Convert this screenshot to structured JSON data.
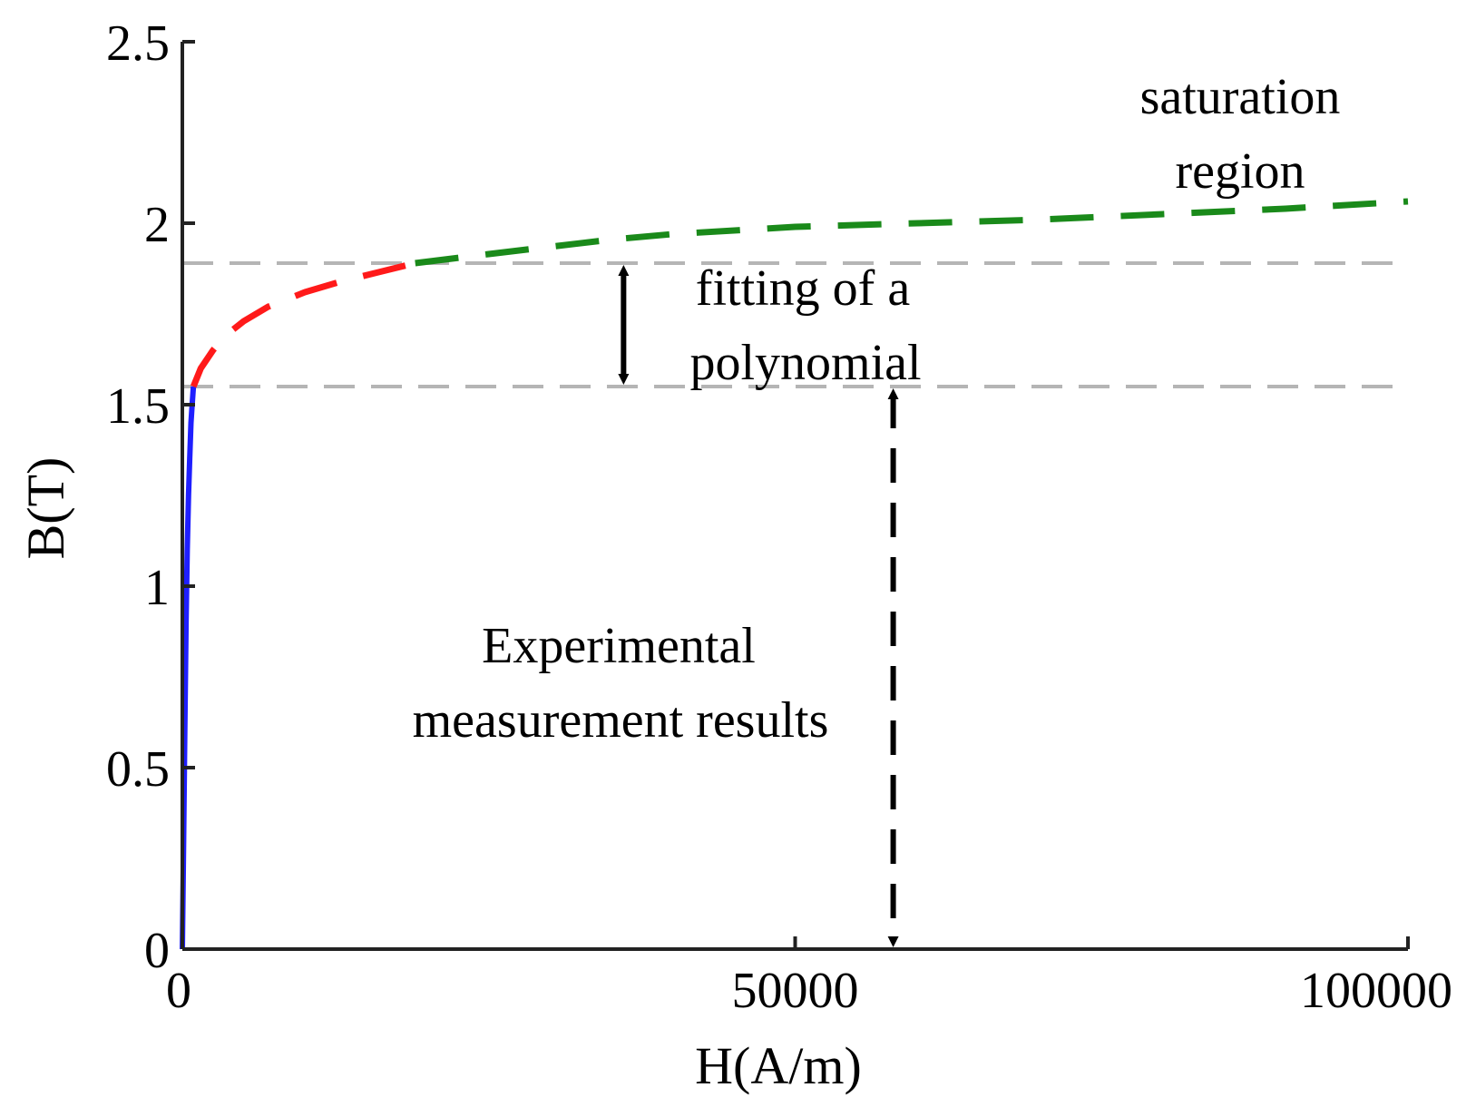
{
  "chart_data": {
    "type": "line",
    "xlabel": "H(A/m)",
    "ylabel": "B(T)",
    "xlim": [
      0,
      100000
    ],
    "ylim": [
      0,
      2.5
    ],
    "xticks": [
      {
        "value": 0,
        "label": "0"
      },
      {
        "value": 50000,
        "label": "50000"
      },
      {
        "value": 100000,
        "label": "100000"
      }
    ],
    "yticks": [
      {
        "value": 0,
        "label": "0"
      },
      {
        "value": 0.5,
        "label": "0.5"
      },
      {
        "value": 1,
        "label": "1"
      },
      {
        "value": 1.5,
        "label": "1.5"
      },
      {
        "value": 2,
        "label": "2"
      },
      {
        "value": 2.5,
        "label": "2.5"
      }
    ],
    "grid": false,
    "series": [
      {
        "name": "Experimental measurement results",
        "color": "#1f1fff",
        "style": "solid",
        "x": [
          0,
          100,
          200,
          300,
          400,
          500,
          600,
          700,
          800,
          900
        ],
        "y": [
          0,
          0.3,
          0.6,
          0.9,
          1.1,
          1.25,
          1.35,
          1.45,
          1.5,
          1.55
        ]
      },
      {
        "name": "fitting of a polynomial",
        "color": "#ff1a1a",
        "style": "dashed",
        "x": [
          900,
          1500,
          2500,
          3500,
          5000,
          7000,
          10000,
          13000,
          16000,
          19000
        ],
        "y": [
          1.55,
          1.6,
          1.65,
          1.69,
          1.73,
          1.77,
          1.81,
          1.84,
          1.865,
          1.89
        ]
      },
      {
        "name": "saturation region",
        "color": "#1a8a1a",
        "style": "dashed",
        "x": [
          19000,
          25000,
          30000,
          35000,
          40000,
          50000,
          60000,
          70000,
          80000,
          90000,
          100000
        ],
        "y": [
          1.89,
          1.915,
          1.935,
          1.955,
          1.97,
          1.99,
          2.0,
          2.01,
          2.025,
          2.04,
          2.06
        ]
      }
    ],
    "reference_lines": [
      {
        "axis": "y",
        "value": 1.89,
        "color": "#b5b5b5",
        "style": "dashed"
      },
      {
        "axis": "y",
        "value": 1.55,
        "color": "#b5b5b5",
        "style": "dashed"
      }
    ],
    "annotations": [
      {
        "lines": [
          "saturation",
          "region"
        ]
      },
      {
        "lines": [
          "fitting of a",
          "polynomial"
        ]
      },
      {
        "lines": [
          "Experimental",
          "measurement results"
        ]
      }
    ],
    "arrows": [
      {
        "x": 36000,
        "y_from": 1.89,
        "y_to": 1.55,
        "style": "solid",
        "color": "#000000"
      },
      {
        "x": 58000,
        "y_from": 1.55,
        "y_to": 0.0,
        "style": "dashed",
        "color": "#000000"
      }
    ]
  }
}
